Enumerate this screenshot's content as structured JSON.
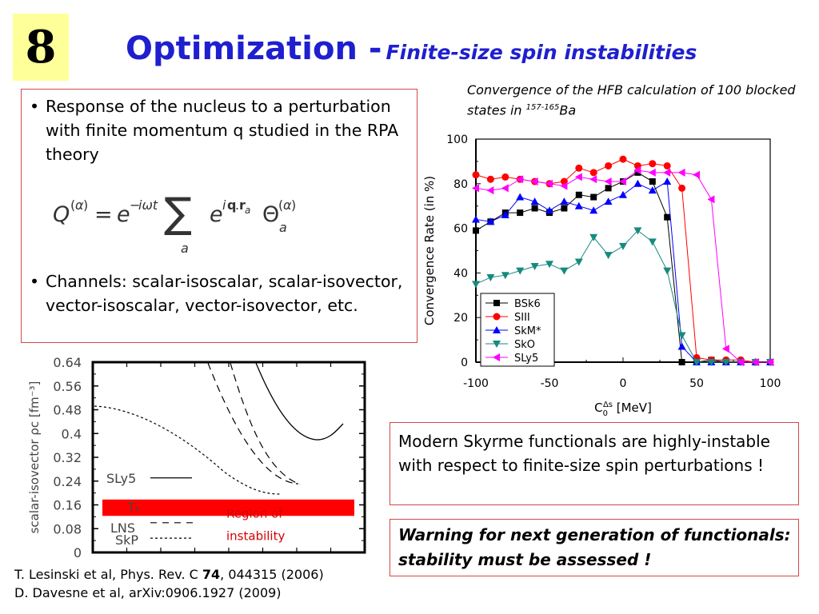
{
  "slide_number": "8",
  "title": {
    "main": "Optimization -",
    "sub": "Finite-size spin instabilities"
  },
  "bullets": [
    "Response of the nucleus to a perturbation with finite momentum q studied in the RPA theory",
    "Channels: scalar-isoscalar, scalar-isovector, vector-isoscalar, vector-isovector, etc."
  ],
  "bullet_symbol": "•",
  "convergence_caption": {
    "text": "Convergence of the HFB calculation of 100 blocked states in ",
    "sup": "157-165",
    "suffix": "Ba"
  },
  "modern_note": "Modern Skyrme functionals are highly-instable with respect to finite-size spin perturbations !",
  "warning": "Warning for next generation of functionals: stability must be assessed !",
  "refs": {
    "ref1_pre": "T. Lesinski et al, Phys. Rev. C ",
    "ref1_vol": "74",
    "ref1_post": ", 044315 (2006)",
    "ref2": "D. Davesne et al, arXiv:0906.1927 (2009)"
  },
  "chart_data": [
    {
      "type": "line",
      "xlabel": "C0^Δs [MeV]",
      "ylabel": "Convergence Rate (in %)",
      "xlim": [
        -100,
        100
      ],
      "ylim": [
        0,
        100
      ],
      "xticks": [
        -100,
        -50,
        0,
        50,
        100
      ],
      "yticks": [
        0,
        20,
        40,
        60,
        80,
        100
      ],
      "legend_position": "bottom-left",
      "series": [
        {
          "name": "BSk6",
          "marker": "square",
          "color": "#000000",
          "x": [
            -100,
            -90,
            -80,
            -70,
            -60,
            -50,
            -40,
            -30,
            -20,
            -10,
            0,
            10,
            20,
            30,
            40,
            50,
            60,
            70,
            80,
            90,
            100
          ],
          "y": [
            59,
            63,
            67,
            67,
            69,
            67,
            69,
            75,
            74,
            78,
            81,
            85,
            81,
            65,
            0,
            0,
            1,
            0,
            0,
            0,
            0
          ]
        },
        {
          "name": "SIII",
          "marker": "circle",
          "color": "#ff0000",
          "x": [
            -100,
            -90,
            -80,
            -70,
            -60,
            -50,
            -40,
            -30,
            -20,
            -10,
            0,
            10,
            20,
            30,
            40,
            50,
            60,
            70,
            80,
            90,
            100
          ],
          "y": [
            84,
            82,
            83,
            82,
            81,
            80,
            81,
            87,
            85,
            88,
            91,
            88,
            89,
            88,
            78,
            2,
            1,
            1,
            1,
            0,
            0
          ]
        },
        {
          "name": "SkM*",
          "marker": "triangle-up",
          "color": "#0000ff",
          "x": [
            -100,
            -90,
            -80,
            -70,
            -60,
            -50,
            -40,
            -30,
            -20,
            -10,
            0,
            10,
            20,
            30,
            40,
            50,
            60,
            70,
            80,
            90,
            100
          ],
          "y": [
            64,
            63,
            66,
            74,
            72,
            68,
            72,
            70,
            68,
            72,
            75,
            80,
            77,
            81,
            7,
            0,
            0,
            0,
            0,
            0,
            0
          ]
        },
        {
          "name": "SkO",
          "marker": "triangle-down",
          "color": "#178a80",
          "x": [
            -100,
            -90,
            -80,
            -70,
            -60,
            -50,
            -40,
            -30,
            -20,
            -10,
            0,
            10,
            20,
            30,
            40,
            50,
            60,
            70,
            80,
            90,
            100
          ],
          "y": [
            35,
            38,
            39,
            41,
            43,
            44,
            41,
            45,
            56,
            48,
            52,
            59,
            54,
            41,
            12,
            0,
            0,
            0,
            0,
            0,
            0
          ]
        },
        {
          "name": "SLy5",
          "marker": "triangle-left",
          "color": "#ff00ff",
          "x": [
            -100,
            -90,
            -80,
            -70,
            -60,
            -50,
            -40,
            -30,
            -20,
            -10,
            0,
            10,
            20,
            30,
            40,
            50,
            60,
            70,
            80,
            90,
            100
          ],
          "y": [
            78,
            77,
            78,
            82,
            81,
            80,
            79,
            83,
            82,
            81,
            81,
            86,
            85,
            85,
            85,
            84,
            73,
            6,
            0,
            0,
            0
          ]
        }
      ]
    },
    {
      "type": "line",
      "ylabel": "scalar-isovector ρc [fm⁻³]",
      "ylim": [
        0,
        0.64
      ],
      "yticks": [
        "0",
        "0.08",
        "0.16",
        "0.24",
        "0.32",
        "0.4",
        "0.48",
        "0.56",
        "0.64"
      ],
      "instability_label": "Region of instability",
      "series": [
        {
          "name": "SLy5",
          "style": "solid"
        },
        {
          "name": "T₄",
          "style": "solid"
        },
        {
          "name": "LNS",
          "style": "dashed"
        },
        {
          "name": "SkP",
          "style": "dotted"
        }
      ]
    }
  ]
}
